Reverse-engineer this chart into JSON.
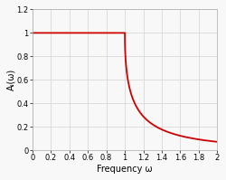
{
  "title": "",
  "xlabel": "Frequency ω",
  "ylabel": "Aᵢ(ω)",
  "xlim": [
    0,
    2
  ],
  "ylim": [
    0,
    1.2
  ],
  "xticks": [
    0,
    0.2,
    0.4,
    0.6,
    0.8,
    1.0,
    1.2,
    1.4,
    1.6,
    1.8,
    2.0
  ],
  "yticks": [
    0,
    0.2,
    0.4,
    0.6,
    0.8,
    1.0,
    1.2
  ],
  "line_color": "#cc0000",
  "line_width": 1.3,
  "background_color": "#f8f8f8",
  "grid_color": "#d8d8d8",
  "cutoff": 1.0
}
